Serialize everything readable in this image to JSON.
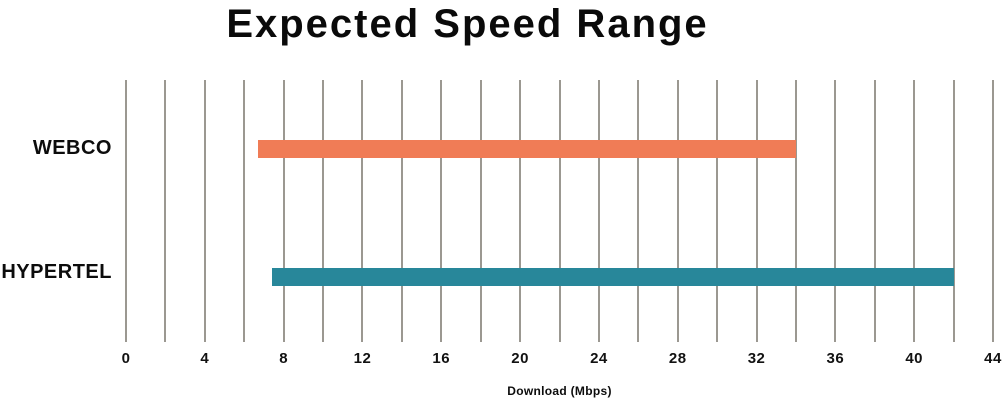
{
  "chart_data": {
    "type": "bar",
    "orientation": "horizontal-range",
    "title": "Expected Speed Range",
    "xlabel": "Download (Mbps)",
    "categories": [
      "WEBCO",
      "HYPERTEL"
    ],
    "series": [
      {
        "name": "WEBCO",
        "range_min": 6.7,
        "range_max": 34,
        "color": "#F07C56"
      },
      {
        "name": "HYPERTEL",
        "range_min": 7.4,
        "range_max": 42,
        "color": "#28879A"
      }
    ],
    "xlim": [
      0,
      44
    ],
    "x_ticks": [
      0,
      4,
      8,
      12,
      16,
      20,
      24,
      28,
      32,
      36,
      40,
      44
    ],
    "gridline_step": 2,
    "grid": "vertical",
    "gridline_color": "#9b9891",
    "legend": "none",
    "text_color": "#0a0a0a",
    "background_color": "#ffffff"
  }
}
